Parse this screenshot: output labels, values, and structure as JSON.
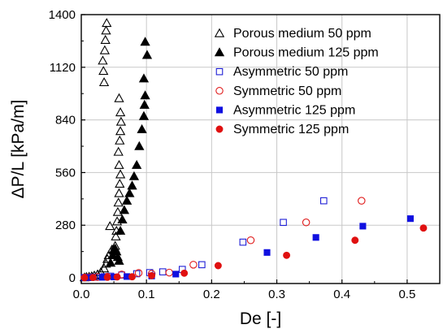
{
  "chart_data": {
    "type": "scatter",
    "title": "",
    "xlabel": "De [-]",
    "ylabel": "ΔP/L [kPa/m]",
    "xlim": [
      0,
      0.55
    ],
    "ylim": [
      -30,
      1400
    ],
    "xticks": [
      0.0,
      0.1,
      0.2,
      0.3,
      0.4,
      0.5
    ],
    "xtick_labels": [
      "0.0",
      "0.1",
      "0.2",
      "0.3",
      "0.4",
      "0.5"
    ],
    "yticks": [
      0,
      280,
      560,
      840,
      1120,
      1400
    ],
    "ytick_labels": [
      "0",
      "280",
      "560",
      "840",
      "1120",
      "1400"
    ],
    "grid": true,
    "legend_position": "top-right",
    "series": [
      {
        "name": "Porous medium 50 ppm",
        "marker": "triangle-open",
        "color": "#000000",
        "points": [
          [
            0.005,
            2
          ],
          [
            0.008,
            4
          ],
          [
            0.012,
            6
          ],
          [
            0.016,
            8
          ],
          [
            0.02,
            12
          ],
          [
            0.025,
            18
          ],
          [
            0.03,
            30
          ],
          [
            0.035,
            50
          ],
          [
            0.038,
            75
          ],
          [
            0.04,
            100
          ],
          [
            0.042,
            120
          ],
          [
            0.044,
            275
          ],
          [
            0.047,
            150
          ],
          [
            0.05,
            150
          ],
          [
            0.052,
            170
          ],
          [
            0.053,
            220
          ],
          [
            0.054,
            250
          ],
          [
            0.055,
            300
          ],
          [
            0.056,
            350
          ],
          [
            0.057,
            400
          ],
          [
            0.058,
            450
          ],
          [
            0.059,
            500
          ],
          [
            0.06,
            550
          ],
          [
            0.058,
            600
          ],
          [
            0.057,
            670
          ],
          [
            0.059,
            730
          ],
          [
            0.06,
            780
          ],
          [
            0.061,
            830
          ],
          [
            0.06,
            880
          ],
          [
            0.058,
            955
          ],
          [
            0.035,
            1040
          ],
          [
            0.034,
            1100
          ],
          [
            0.033,
            1155
          ],
          [
            0.036,
            1210
          ],
          [
            0.037,
            1265
          ],
          [
            0.038,
            1315
          ],
          [
            0.039,
            1355
          ]
        ]
      },
      {
        "name": "Porous medium 125 ppm",
        "marker": "triangle-filled",
        "color": "#000000",
        "points": [
          [
            0.045,
            80
          ],
          [
            0.048,
            120
          ],
          [
            0.05,
            145
          ],
          [
            0.052,
            155
          ],
          [
            0.054,
            140
          ],
          [
            0.056,
            110
          ],
          [
            0.058,
            90
          ],
          [
            0.06,
            250
          ],
          [
            0.063,
            310
          ],
          [
            0.066,
            360
          ],
          [
            0.07,
            410
          ],
          [
            0.074,
            450
          ],
          [
            0.078,
            490
          ],
          [
            0.081,
            540
          ],
          [
            0.085,
            600
          ],
          [
            0.089,
            700
          ],
          [
            0.093,
            790
          ],
          [
            0.096,
            860
          ],
          [
            0.097,
            920
          ],
          [
            0.098,
            970
          ],
          [
            0.096,
            1060
          ],
          [
            0.101,
            1185
          ],
          [
            0.098,
            1255
          ]
        ]
      },
      {
        "name": "Asymmetric 50 ppm",
        "marker": "square-open",
        "color": "#1f1fd6",
        "points": [
          [
            0.005,
            2
          ],
          [
            0.01,
            3
          ],
          [
            0.02,
            4
          ],
          [
            0.035,
            6
          ],
          [
            0.045,
            9
          ],
          [
            0.062,
            15
          ],
          [
            0.085,
            22
          ],
          [
            0.105,
            28
          ],
          [
            0.125,
            32
          ],
          [
            0.155,
            45
          ],
          [
            0.185,
            70
          ],
          [
            0.248,
            190
          ],
          [
            0.31,
            295
          ],
          [
            0.372,
            410
          ]
        ]
      },
      {
        "name": "Symmetric 50 ppm",
        "marker": "circle-open",
        "color": "#e01b1b",
        "points": [
          [
            0.005,
            2
          ],
          [
            0.012,
            3
          ],
          [
            0.025,
            4
          ],
          [
            0.04,
            6
          ],
          [
            0.062,
            18
          ],
          [
            0.088,
            26
          ],
          [
            0.108,
            22
          ],
          [
            0.135,
            28
          ],
          [
            0.172,
            70
          ],
          [
            0.26,
            200
          ],
          [
            0.345,
            295
          ],
          [
            0.43,
            410
          ]
        ]
      },
      {
        "name": "Asymmetric 125 ppm",
        "marker": "square-filled",
        "color": "#1010e0",
        "points": [
          [
            0.005,
            1
          ],
          [
            0.015,
            2
          ],
          [
            0.032,
            3
          ],
          [
            0.05,
            5
          ],
          [
            0.07,
            7
          ],
          [
            0.108,
            10
          ],
          [
            0.145,
            20
          ],
          [
            0.285,
            135
          ],
          [
            0.36,
            215
          ],
          [
            0.432,
            275
          ],
          [
            0.505,
            315
          ]
        ]
      },
      {
        "name": "Symmetric 125 ppm",
        "marker": "circle-filled",
        "color": "#e01010",
        "points": [
          [
            0.005,
            1
          ],
          [
            0.018,
            2
          ],
          [
            0.04,
            3
          ],
          [
            0.055,
            5
          ],
          [
            0.078,
            6
          ],
          [
            0.108,
            12
          ],
          [
            0.158,
            25
          ],
          [
            0.21,
            65
          ],
          [
            0.315,
            120
          ],
          [
            0.42,
            200
          ],
          [
            0.525,
            265
          ]
        ]
      }
    ]
  }
}
